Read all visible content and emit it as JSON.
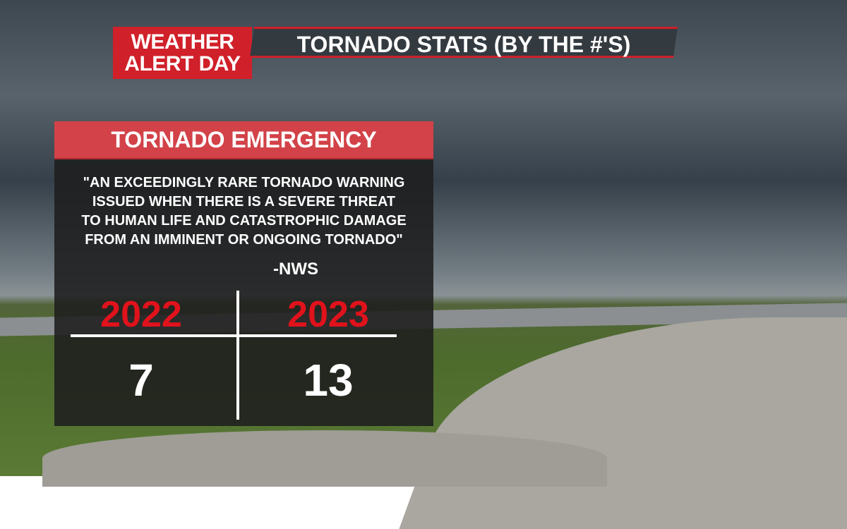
{
  "header": {
    "badge": [
      "WEATHER",
      "ALERT DAY"
    ],
    "title": "TORNADO STATS (BY THE #'S)"
  },
  "panel": {
    "title": "TORNADO EMERGENCY",
    "quote": [
      "\"AN EXCEEDINGLY RARE TORNADO WARNING",
      "ISSUED WHEN THERE IS A SEVERE THREAT",
      "TO HUMAN LIFE AND CATASTROPHIC DAMAGE",
      "FROM AN IMMINENT OR ONGOING TORNADO\""
    ],
    "source": "-NWS"
  },
  "table": {
    "headers": [
      2022,
      2023
    ],
    "values": [
      7,
      13
    ]
  }
}
